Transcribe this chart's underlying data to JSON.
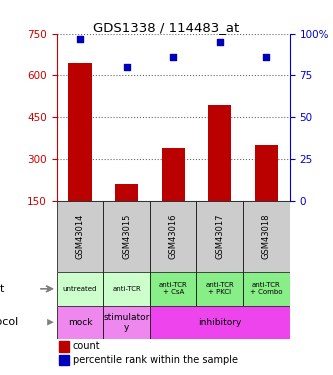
{
  "title": "GDS1338 / 114483_at",
  "samples": [
    "GSM43014",
    "GSM43015",
    "GSM43016",
    "GSM43017",
    "GSM43018"
  ],
  "counts": [
    645,
    208,
    340,
    495,
    350
  ],
  "percentile_ranks": [
    97,
    80,
    86,
    95,
    86
  ],
  "ylim_left": [
    150,
    750
  ],
  "ylim_right": [
    0,
    100
  ],
  "yticks_left": [
    150,
    300,
    450,
    600,
    750
  ],
  "yticks_right": [
    0,
    25,
    50,
    75,
    100
  ],
  "yticklabels_right": [
    "0",
    "25",
    "50",
    "75",
    "100%"
  ],
  "bar_color": "#bb0000",
  "dot_color": "#0000bb",
  "agent_labels": [
    "untreated",
    "anti-TCR",
    "anti-TCR\n+ CsA",
    "anti-TCR\n+ PKCi",
    "anti-TCR\n+ Combo"
  ],
  "agent_colors": [
    "#ccffcc",
    "#ccffcc",
    "#88ee88",
    "#88ee88",
    "#88ee88"
  ],
  "protocol_defs": [
    {
      "label": "mock",
      "start": 0,
      "end": 0,
      "color": "#ee88ee"
    },
    {
      "label": "stimulator\ny",
      "start": 1,
      "end": 1,
      "color": "#ee88ee"
    },
    {
      "label": "inhibitory",
      "start": 2,
      "end": 4,
      "color": "#ee44ee"
    }
  ],
  "sample_bg_color": "#cccccc",
  "legend_count_color": "#bb0000",
  "legend_pct_color": "#0000bb",
  "ylabel_left_color": "#cc0000",
  "ylabel_right_color": "#0000cc"
}
